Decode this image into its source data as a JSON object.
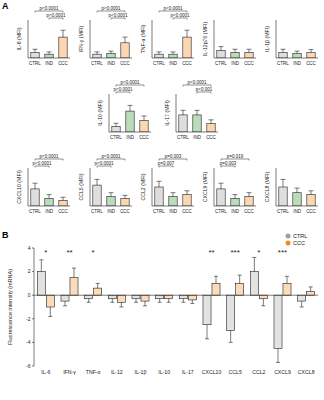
{
  "chart_data": [
    {
      "type": "bar",
      "panel": "A",
      "y_label": "IL-6 (MFI)",
      "categories": [
        "CTRL",
        "IND",
        "CCC"
      ],
      "values": [
        15,
        10,
        55
      ],
      "errors": [
        8,
        6,
        18
      ],
      "colors": [
        "#a0a0a0",
        "#3a9a3a",
        "#f08a24"
      ],
      "ylim": [
        0,
        100
      ],
      "tick_labels": "x",
      "annotations": [
        {
          "label": "p<0.0001",
          "groups": [
            "CTRL",
            "CCC"
          ]
        },
        {
          "label": "p<0.0001",
          "groups": [
            "IND",
            "CCC"
          ]
        }
      ]
    },
    {
      "type": "bar",
      "y_label": "IFN-γ (MFI)",
      "categories": [
        "CTRL",
        "IND",
        "CCC"
      ],
      "values": [
        10,
        12,
        40
      ],
      "errors": [
        6,
        6,
        15
      ],
      "colors": [
        "#a0a0a0",
        "#3a9a3a",
        "#f08a24"
      ],
      "ylim": [
        0,
        100
      ],
      "tick_labels": "x",
      "annotations": [
        {
          "label": "p<0.0001",
          "groups": [
            "CTRL",
            "CCC"
          ]
        },
        {
          "label": "p<0.0001",
          "groups": [
            "IND",
            "CCC"
          ]
        }
      ]
    },
    {
      "type": "bar",
      "y_label": "TNF-α (MFI)",
      "categories": [
        "CTRL",
        "IND",
        "CCC"
      ],
      "values": [
        10,
        10,
        55
      ],
      "errors": [
        6,
        6,
        18
      ],
      "colors": [
        "#a0a0a0",
        "#3a9a3a",
        "#f08a24"
      ],
      "ylim": [
        0,
        100
      ],
      "tick_labels": "x",
      "annotations": [
        {
          "label": "p<0.0001",
          "groups": [
            "CTRL",
            "CCC"
          ]
        },
        {
          "label": "p<0.0001",
          "groups": [
            "IND",
            "CCC"
          ]
        }
      ]
    },
    {
      "type": "bar",
      "y_label": "IL-12p70 (MFI)",
      "categories": [
        "CTRL",
        "IND",
        "CCC"
      ],
      "values": [
        20,
        15,
        15
      ],
      "errors": [
        10,
        8,
        8
      ],
      "colors": [
        "#a0a0a0",
        "#3a9a3a",
        "#f08a24"
      ],
      "ylim": [
        0,
        100
      ],
      "tick_labels": "x",
      "annotations": []
    },
    {
      "type": "bar",
      "y_label": "IL-1β (MFI)",
      "categories": [
        "CTRL",
        "IND",
        "CCC"
      ],
      "values": [
        15,
        12,
        14
      ],
      "errors": [
        8,
        6,
        8
      ],
      "colors": [
        "#a0a0a0",
        "#3a9a3a",
        "#f08a24"
      ],
      "ylim": [
        0,
        100
      ],
      "tick_labels": "x",
      "annotations": []
    },
    {
      "type": "bar",
      "y_label": "IL-10 (MFI)",
      "categories": [
        "CTRL",
        "IND",
        "CCC"
      ],
      "values": [
        15,
        55,
        30
      ],
      "errors": [
        8,
        15,
        12
      ],
      "colors": [
        "#a0a0a0",
        "#3a9a3a",
        "#f08a24"
      ],
      "ylim": [
        0,
        100
      ],
      "tick_labels": "x",
      "annotations": [
        {
          "label": "p<0.0001",
          "groups": [
            "CTRL",
            "CCC"
          ]
        },
        {
          "label": "p<0.0001",
          "groups": [
            "CTRL",
            "IND"
          ]
        }
      ]
    },
    {
      "type": "bar",
      "y_label": "IL-17 (MFI)",
      "categories": [
        "CTRL",
        "IND",
        "CCC"
      ],
      "values": [
        45,
        45,
        22
      ],
      "errors": [
        12,
        12,
        10
      ],
      "colors": [
        "#a0a0a0",
        "#3a9a3a",
        "#f08a24"
      ],
      "ylim": [
        0,
        100
      ],
      "tick_labels": "x",
      "annotations": [
        {
          "label": "p<0.0001",
          "groups": [
            "CTRL",
            "CCC"
          ]
        },
        {
          "label": "p<0.001",
          "groups": [
            "IND",
            "CCC"
          ]
        }
      ]
    },
    {
      "type": "bar",
      "y_label": "CXCL10 (MFI)",
      "categories": [
        "CTRL",
        "IND",
        "CCC"
      ],
      "values": [
        45,
        20,
        15
      ],
      "errors": [
        15,
        10,
        8
      ],
      "colors": [
        "#a0a0a0",
        "#3a9a3a",
        "#f08a24"
      ],
      "ylim": [
        0,
        100
      ],
      "tick_labels": "x",
      "annotations": [
        {
          "label": "p<0.0001",
          "groups": [
            "CTRL",
            "CCC"
          ]
        },
        {
          "label": "p<0.0001",
          "groups": [
            "CTRL",
            "IND"
          ]
        }
      ]
    },
    {
      "type": "bar",
      "y_label": "CCL5 (MFI)",
      "categories": [
        "CTRL",
        "IND",
        "CCC"
      ],
      "values": [
        55,
        25,
        20
      ],
      "errors": [
        15,
        10,
        8
      ],
      "colors": [
        "#a0a0a0",
        "#3a9a3a",
        "#f08a24"
      ],
      "ylim": [
        0,
        100
      ],
      "tick_labels": "x",
      "annotations": [
        {
          "label": "p<0.0001",
          "groups": [
            "CTRL",
            "CCC"
          ]
        },
        {
          "label": "p<0.0001",
          "groups": [
            "CTRL",
            "IND"
          ]
        }
      ]
    },
    {
      "type": "bar",
      "y_label": "CCL2 (MFI)",
      "categories": [
        "CTRL",
        "IND",
        "CCC"
      ],
      "values": [
        50,
        25,
        30
      ],
      "errors": [
        15,
        10,
        10
      ],
      "colors": [
        "#a0a0a0",
        "#3a9a3a",
        "#f08a24"
      ],
      "ylim": [
        0,
        100
      ],
      "tick_labels": "x",
      "annotations": [
        {
          "label": "p=0.003",
          "groups": [
            "CTRL",
            "CCC"
          ]
        },
        {
          "label": "p=0.007",
          "groups": [
            "CTRL",
            "IND"
          ]
        }
      ]
    },
    {
      "type": "bar",
      "y_label": "CXCL9 (MFI)",
      "categories": [
        "CTRL",
        "IND",
        "CCC"
      ],
      "values": [
        45,
        20,
        25
      ],
      "errors": [
        15,
        10,
        10
      ],
      "colors": [
        "#a0a0a0",
        "#3a9a3a",
        "#f08a24"
      ],
      "ylim": [
        0,
        100
      ],
      "tick_labels": "x",
      "annotations": [
        {
          "label": "p=0.019",
          "groups": [
            "CTRL",
            "CCC"
          ]
        },
        {
          "label": "p=0.003",
          "groups": [
            "CTRL",
            "IND"
          ]
        }
      ]
    },
    {
      "type": "bar",
      "y_label": "CXCL8 (MFI)",
      "categories": [
        "CTRL",
        "IND",
        "CCC"
      ],
      "values": [
        50,
        35,
        30
      ],
      "errors": [
        20,
        12,
        10
      ],
      "colors": [
        "#a0a0a0",
        "#3a9a3a",
        "#f08a24"
      ],
      "ylim": [
        0,
        100
      ],
      "tick_labels": "x",
      "annotations": []
    },
    {
      "type": "bar",
      "panel": "B",
      "y_label": "Fluorescence intensity (mRNA)",
      "categories": [
        "IL-6",
        "IFN-γ",
        "TNF-α",
        "IL-12",
        "IL-1β",
        "IL-10",
        "IL-17",
        "CXCL10",
        "CCL5",
        "CCL2",
        "CXCL9",
        "CXCL8"
      ],
      "series": [
        {
          "name": "CTRL",
          "color": "#a0a0a0",
          "values": [
            2.0,
            -0.5,
            -0.3,
            -0.3,
            -0.3,
            -0.3,
            -0.3,
            -2.5,
            -3.0,
            2.0,
            -4.5,
            -0.5
          ],
          "errors": [
            1.0,
            0.4,
            0.3,
            0.3,
            0.3,
            0.3,
            0.3,
            1.2,
            1.0,
            1.2,
            1.2,
            0.5
          ]
        },
        {
          "name": "CCC",
          "color": "#f08a24",
          "values": [
            -1.0,
            1.5,
            0.6,
            -0.6,
            -0.5,
            -0.3,
            -0.4,
            1.0,
            1.0,
            -0.3,
            1.0,
            0.3
          ],
          "errors": [
            0.8,
            0.8,
            0.4,
            0.4,
            0.4,
            0.3,
            0.3,
            0.6,
            0.7,
            0.6,
            0.6,
            0.4
          ]
        }
      ],
      "significance": [
        "*",
        "**",
        "*",
        null,
        null,
        null,
        null,
        "**",
        "***",
        "*",
        "***",
        null
      ],
      "ylim": [
        -6,
        4
      ],
      "yticks": [
        -6,
        -4,
        -2,
        0,
        2,
        4
      ],
      "legend": "top-right"
    }
  ]
}
